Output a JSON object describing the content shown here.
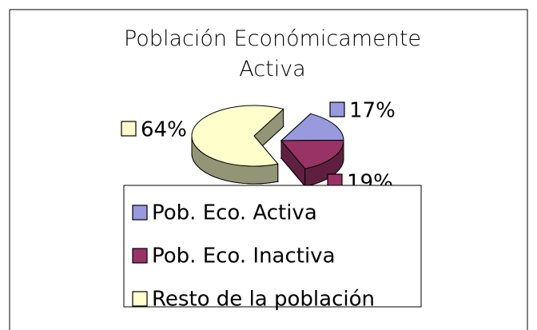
{
  "chart_data": {
    "type": "pie",
    "title": "Población Económicamente Activa",
    "categories": [
      "Pob. Eco. Activa",
      "Pob. Eco. Inactiva",
      "Resto de la población"
    ],
    "values": [
      17,
      19,
      64
    ],
    "value_labels": [
      "17%",
      "19%",
      "64%"
    ],
    "colors": [
      "#9999dd",
      "#993366",
      "#ffffcc"
    ],
    "legend": "bottom"
  }
}
